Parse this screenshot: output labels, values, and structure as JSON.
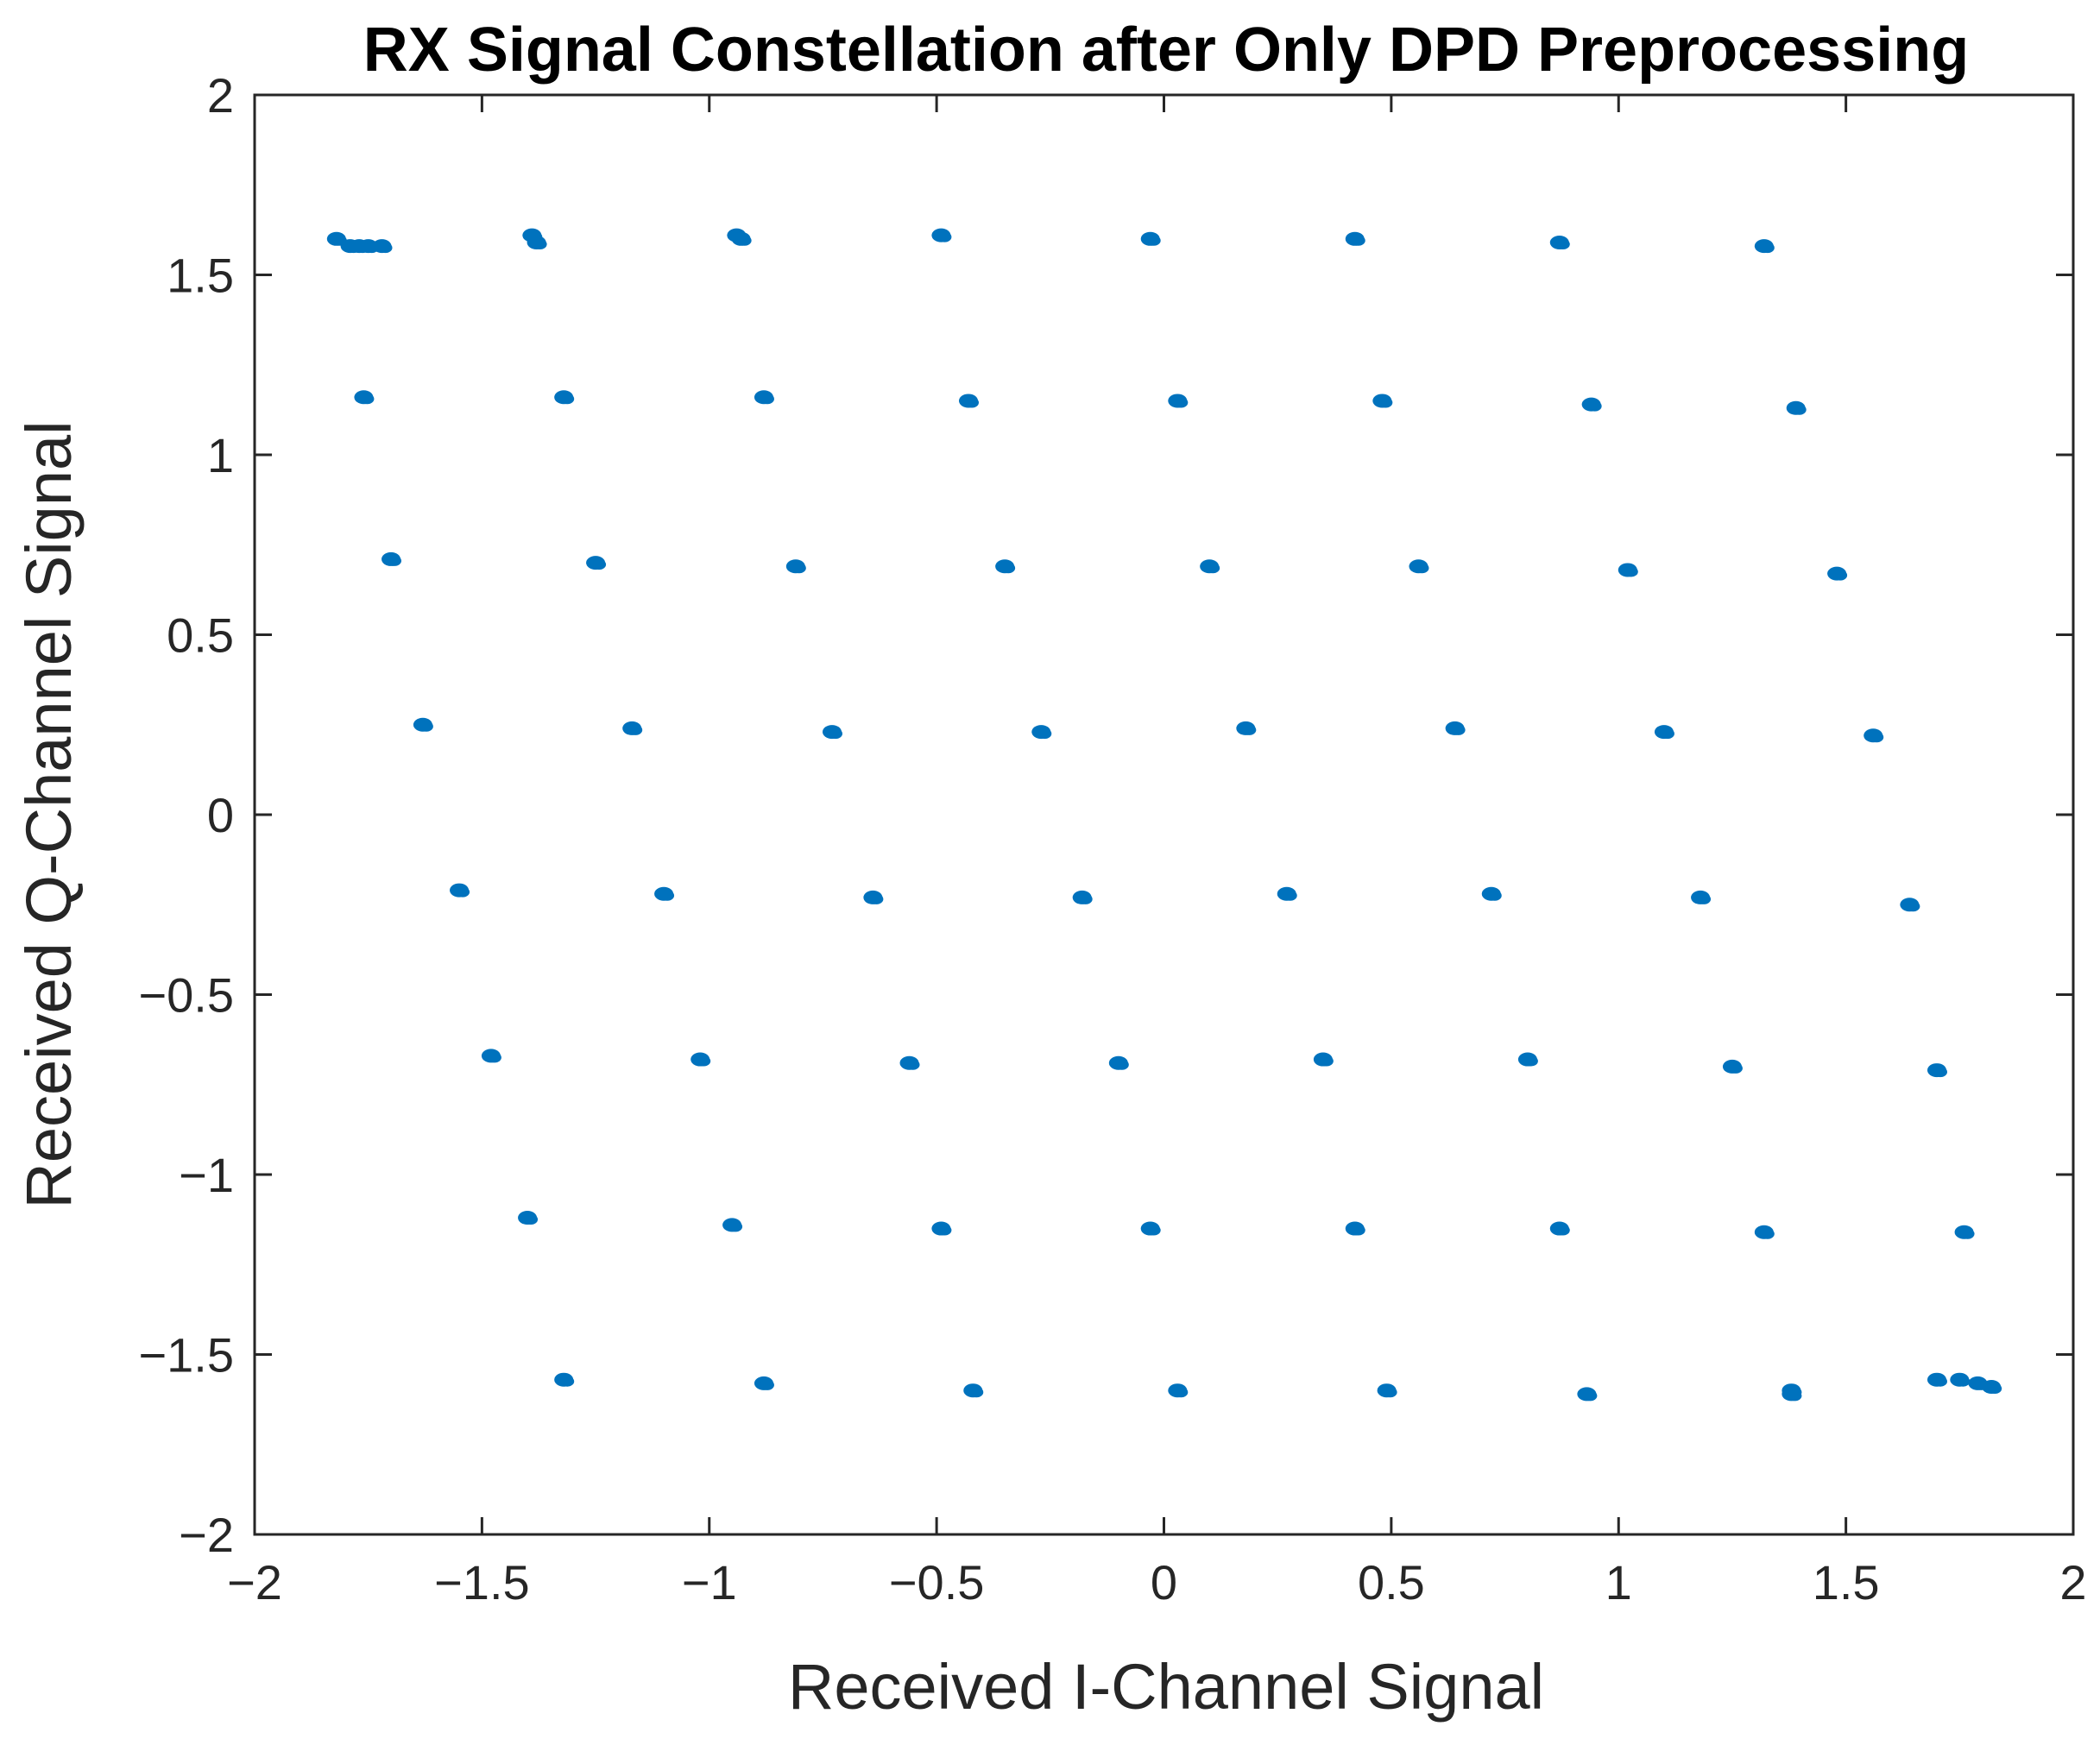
{
  "chart_data": {
    "type": "scatter",
    "title": "RX Signal Constellation after Only DPD Preprocessing",
    "xlabel": "Received I-Channel Signal",
    "ylabel": "Received Q-Channel Signal",
    "xlim": [
      -2,
      2
    ],
    "ylim": [
      -2,
      2
    ],
    "xticks": [
      -2,
      -1.5,
      -1,
      -0.5,
      0,
      0.5,
      1,
      1.5,
      2
    ],
    "yticks": [
      -2,
      -1.5,
      -1,
      -0.5,
      0,
      0.5,
      1,
      1.5,
      2
    ],
    "xtick_labels": [
      "−2",
      "−1.5",
      "−1",
      "−0.5",
      "0",
      "0.5",
      "1",
      "1.5",
      "2"
    ],
    "ytick_labels": [
      "−2",
      "−1.5",
      "−1",
      "−0.5",
      "0",
      "0.5",
      "1",
      "1.5",
      "2"
    ],
    "grid": false,
    "marker_color": "#0072BD",
    "series": [
      {
        "x": [
          -1.82,
          -1.79,
          -1.77,
          -1.75,
          -1.72,
          -1.39,
          -1.38,
          -0.94,
          -0.93,
          -0.49,
          -0.03,
          0.42,
          0.87,
          1.32,
          -1.76,
          -1.32,
          -0.88,
          -0.43,
          0.03,
          0.48,
          0.94,
          1.39,
          -1.7,
          -1.25,
          -0.81,
          -0.35,
          0.1,
          0.56,
          1.02,
          1.48,
          -1.63,
          -1.17,
          -0.73,
          -0.27,
          0.18,
          0.64,
          1.1,
          1.56,
          -1.55,
          -1.1,
          -0.64,
          -0.18,
          0.27,
          0.72,
          1.18,
          1.64,
          -1.48,
          -1.02,
          -0.56,
          -0.1,
          0.35,
          0.8,
          1.25,
          1.7,
          -1.4,
          -0.95,
          -0.49,
          -0.03,
          0.42,
          0.87,
          1.32,
          1.76,
          -1.32,
          -0.88,
          -0.42,
          0.03,
          0.49,
          0.93,
          1.38,
          1.38,
          1.7,
          1.75,
          1.79,
          1.82
        ],
        "y": [
          1.6,
          1.58,
          1.58,
          1.58,
          1.58,
          1.61,
          1.59,
          1.61,
          1.6,
          1.61,
          1.6,
          1.6,
          1.59,
          1.58,
          1.16,
          1.16,
          1.16,
          1.15,
          1.15,
          1.15,
          1.14,
          1.13,
          0.71,
          0.7,
          0.69,
          0.69,
          0.69,
          0.69,
          0.68,
          0.67,
          0.25,
          0.24,
          0.23,
          0.23,
          0.24,
          0.24,
          0.23,
          0.22,
          -0.21,
          -0.22,
          -0.23,
          -0.23,
          -0.22,
          -0.22,
          -0.23,
          -0.25,
          -0.67,
          -0.68,
          -0.69,
          -0.69,
          -0.68,
          -0.68,
          -0.7,
          -0.71,
          -1.12,
          -1.14,
          -1.15,
          -1.15,
          -1.15,
          -1.15,
          -1.16,
          -1.16,
          -1.57,
          -1.58,
          -1.6,
          -1.6,
          -1.6,
          -1.61,
          -1.6,
          -1.61,
          -1.57,
          -1.57,
          -1.58,
          -1.59
        ]
      }
    ]
  }
}
